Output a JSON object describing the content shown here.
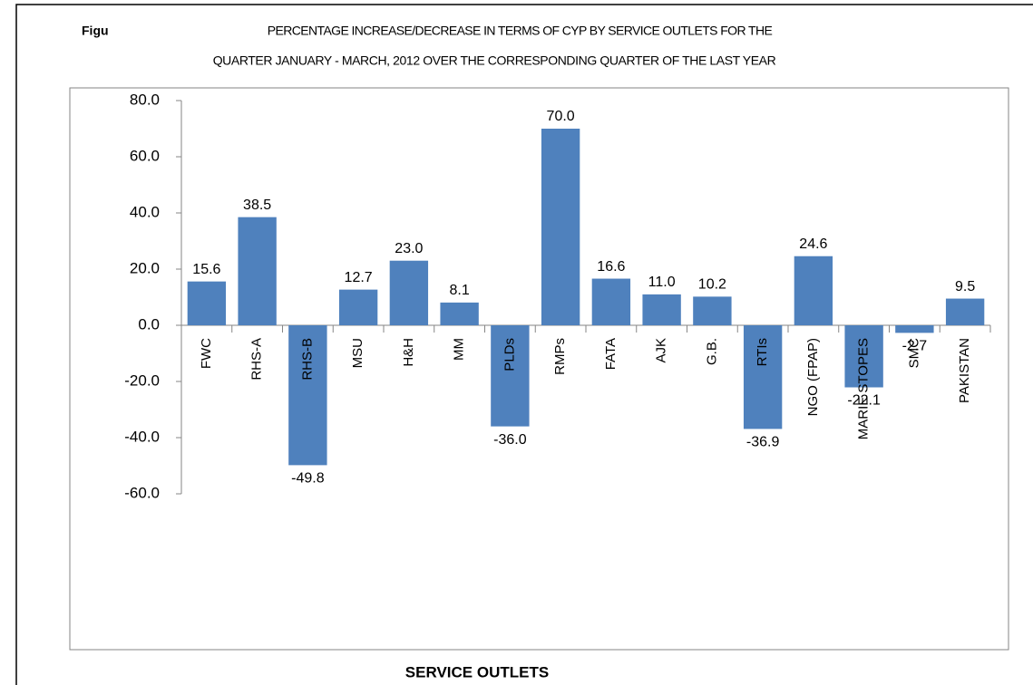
{
  "chart_data": {
    "type": "bar",
    "figure_label": "Figu",
    "title": [
      "PERCENTAGE INCREASE/DECREASE IN TERMS OF CYP BY SERVICE OUTLETS FOR THE",
      "QUARTER JANUARY - MARCH, 2012 OVER THE CORRESPONDING QUARTER OF THE LAST YEAR"
    ],
    "x_label": "SERVICE OUTLETS",
    "categories": [
      "FWC",
      "RHS-A",
      "RHS-B",
      "MSU",
      "H&H",
      "MM",
      "PLDs",
      "RMPs",
      "FATA",
      "AJK",
      "G.B.",
      "RTIs",
      "NGO (FPAP)",
      "MARIE STOPES",
      "SMC",
      "PAKISTAN"
    ],
    "values": [
      15.6,
      38.5,
      -49.8,
      12.7,
      23.0,
      8.1,
      -36.0,
      70.0,
      16.6,
      11.0,
      10.2,
      -36.9,
      24.6,
      -22.1,
      -2.7,
      9.5
    ],
    "value_labels": [
      "15.6",
      "38.5",
      "-49.8",
      "12.7",
      "23.0",
      "8.1",
      "-36.0",
      "70.0",
      "16.6",
      "11.0",
      "10.2",
      "-36.9",
      "24.6",
      "-22.1",
      "-2.7",
      "9.5"
    ],
    "color": "#4f81bd",
    "ylim": [
      -60,
      80
    ],
    "yticks": [
      {
        "value": -60,
        "label": "-60.0"
      },
      {
        "value": -40,
        "label": "-40.0"
      },
      {
        "value": -20,
        "label": "-20.0"
      },
      {
        "value": 0,
        "label": "0.0"
      },
      {
        "value": 20,
        "label": "20.0"
      },
      {
        "value": 40,
        "label": "40.0"
      },
      {
        "value": 60,
        "label": "60.0"
      },
      {
        "value": 80,
        "label": "80.0"
      }
    ],
    "grid": false
  }
}
